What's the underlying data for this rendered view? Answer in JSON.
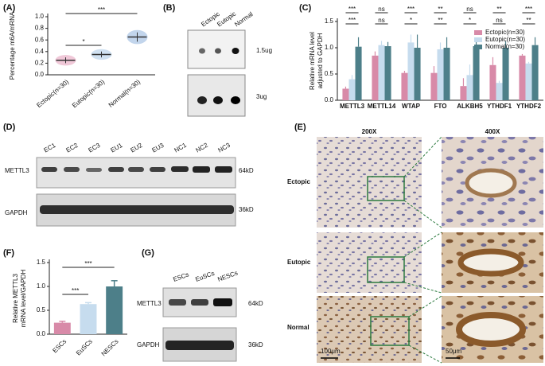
{
  "chart_data": [
    {
      "type": "dot",
      "y_label": "Percentage m6A/mRNA",
      "categories": [
        "Ectopic(n=30)",
        "Eutopic(n=30)",
        "Normal(n=30)"
      ],
      "values": [
        0.25,
        0.35,
        0.65
      ],
      "errors": [
        0.05,
        0.05,
        0.08
      ],
      "colors": [
        "#e39ab8",
        "#a9c8e6",
        "#8fb3dc"
      ],
      "ylim": [
        0,
        1.0
      ],
      "yticks": [
        {
          "value": 0,
          "label": "0.0"
        },
        0.2,
        0.4,
        0.6,
        0.8,
        {
          "value": 1.0,
          "label": "1.0"
        }
      ],
      "annotations": [
        "***",
        "*"
      ]
    },
    {
      "type": "grouped-bar",
      "y_label": [
        "Relative mRNA level",
        "adjusted to GAPDH"
      ],
      "categories": [
        "METTL3",
        "METTL14",
        "WTAP",
        "FTO",
        "ALKBH5",
        "YTHDF1",
        "YTHDF2"
      ],
      "series": [
        {
          "name": "Ectopic(n=30)",
          "color": "#d88aa8",
          "values": [
            0.22,
            0.85,
            0.52,
            0.52,
            0.27,
            0.67,
            0.85
          ],
          "errors": [
            0.04,
            0.08,
            0.04,
            0.13,
            0.15,
            0.15,
            0.03
          ]
        },
        {
          "name": "Eutopic(n=30)",
          "color": "#c6dcee",
          "values": [
            0.4,
            1.05,
            1.1,
            0.97,
            0.48,
            0.33,
            0.7
          ],
          "errors": [
            0.08,
            0.08,
            0.15,
            0.13,
            0.2,
            0.04,
            0.03
          ]
        },
        {
          "name": "Normal(n=30)",
          "color": "#4d7f89",
          "values": [
            1.02,
            1.03,
            1.0,
            1.0,
            1.03,
            1.0,
            1.05
          ],
          "errors": [
            0.18,
            0.08,
            0.25,
            0.2,
            0.15,
            0.12,
            0.15
          ]
        }
      ],
      "ylim": [
        0,
        1.5
      ],
      "yticks": [
        {
          "value": 0,
          "label": "0.0"
        },
        0.5,
        {
          "value": 1.0,
          "label": "1.0"
        },
        1.5
      ],
      "annotations": [
        [
          "***",
          "***"
        ],
        [
          "ns",
          "ns"
        ],
        [
          "***",
          "*"
        ],
        [
          "**",
          "**"
        ],
        [
          "ns",
          "*"
        ],
        [
          "**",
          "ns"
        ],
        [
          "***",
          "**"
        ]
      ]
    },
    {
      "type": "bar",
      "y_label": [
        "Relative METTL3",
        "mRNA level/GAPDH"
      ],
      "categories": [
        "ESCs",
        "EuSCs",
        "NESCs"
      ],
      "values": [
        0.24,
        0.63,
        1.0
      ],
      "errors": [
        0.03,
        0.03,
        0.12
      ],
      "colors": [
        "#d88aa8",
        "#c6dcee",
        "#4d7f89"
      ],
      "ylim": [
        0,
        1.5
      ],
      "yticks": [
        {
          "value": 0,
          "label": "0.0"
        },
        0.5,
        {
          "value": 1.0,
          "label": "1.0"
        },
        1.5
      ],
      "annotations": [
        "***",
        "***"
      ]
    }
  ],
  "panel_labels": [
    "(A)",
    "(B)",
    "(C)",
    "(D)",
    "(E)",
    "(F)",
    "(G)"
  ],
  "dot_blot": {
    "lanes": [
      "Ectopic",
      "Eutopic",
      "Normal"
    ],
    "loads": [
      "1.5ug",
      "3ug"
    ]
  },
  "western_tissue": {
    "lanes": [
      "EC1",
      "EC2",
      "EC3",
      "EU1",
      "EU2",
      "EU3",
      "NC1",
      "NC2",
      "NC3"
    ],
    "proteins": [
      "METTL3",
      "GAPDH"
    ],
    "sizes": [
      "64kD",
      "36kD"
    ]
  },
  "ihc": {
    "magnifications": [
      "200X",
      "400X"
    ],
    "groups": [
      "Ectopic",
      "Eutopic",
      "Normal"
    ],
    "scale_bars": [
      "100μm",
      "50μm"
    ]
  },
  "western_cells": {
    "lanes": [
      "ESCs",
      "EuSCs",
      "NESCs"
    ],
    "proteins": [
      "METTL3",
      "GAPDH"
    ],
    "sizes": [
      "64kD",
      "36kD"
    ]
  }
}
